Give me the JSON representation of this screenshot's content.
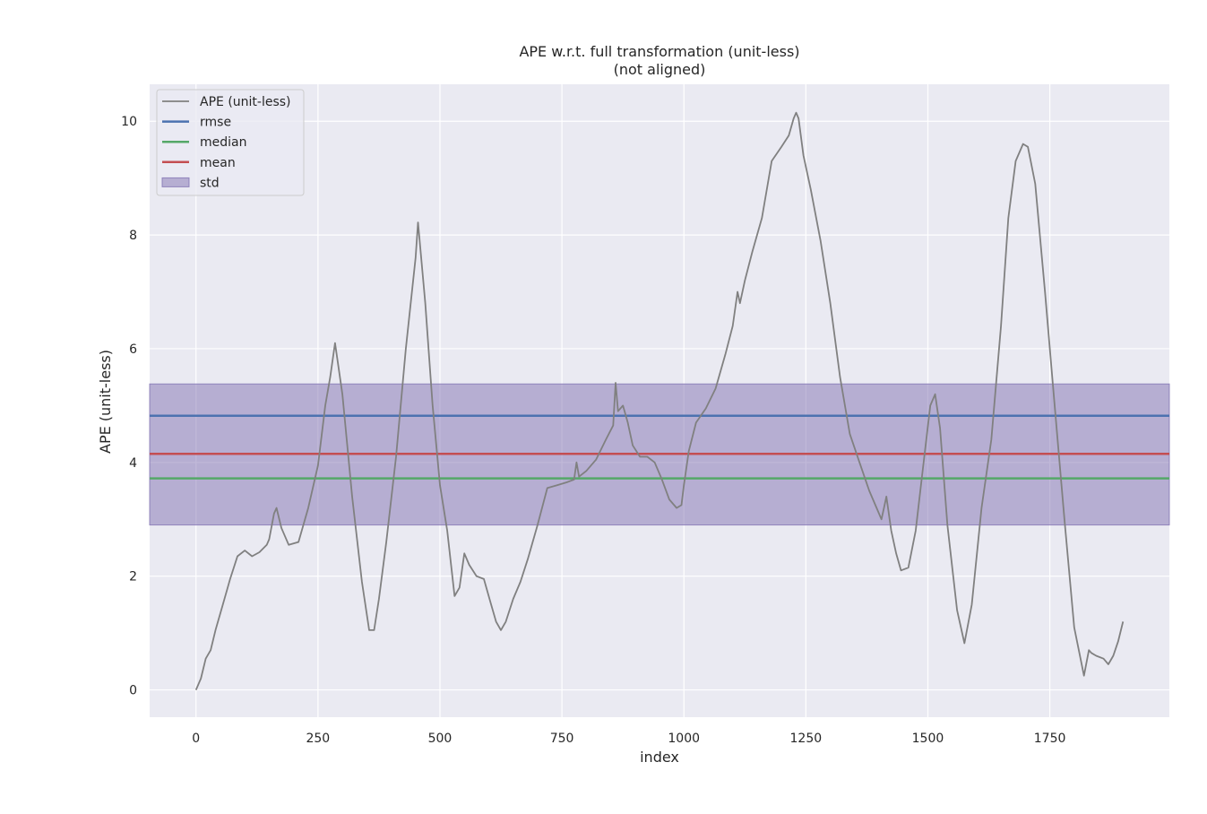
{
  "chart_data": {
    "type": "line",
    "title": "APE w.r.t. full transformation (unit-less)",
    "subtitle": "(not aligned)",
    "xlabel": "index",
    "ylabel": "APE (unit-less)",
    "xlim": [
      -95,
      1995
    ],
    "ylim": [
      -0.48,
      10.65
    ],
    "xticks": [
      0,
      250,
      500,
      750,
      1000,
      1250,
      1500,
      1750
    ],
    "yticks": [
      0,
      2,
      4,
      6,
      8,
      10
    ],
    "grid": true,
    "legend_position": "top-left",
    "stats": {
      "rmse": 4.82,
      "median": 3.72,
      "mean": 4.15,
      "std_band": [
        2.9,
        5.38
      ]
    },
    "legend": [
      {
        "label": "APE (unit-less)",
        "kind": "line",
        "color": "#808080"
      },
      {
        "label": "rmse",
        "kind": "line",
        "color": "#4c72b0"
      },
      {
        "label": "median",
        "kind": "line",
        "color": "#55a868"
      },
      {
        "label": "mean",
        "kind": "line",
        "color": "#c44e52"
      },
      {
        "label": "std",
        "kind": "patch",
        "color": "#8172b2"
      }
    ],
    "series": [
      {
        "name": "APE (unit-less)",
        "color": "#808080",
        "x": [
          0,
          10,
          20,
          30,
          40,
          55,
          70,
          85,
          100,
          115,
          130,
          145,
          150,
          160,
          165,
          175,
          190,
          210,
          230,
          250,
          265,
          275,
          285,
          300,
          320,
          340,
          355,
          365,
          375,
          390,
          410,
          430,
          450,
          455,
          470,
          485,
          500,
          515,
          530,
          540,
          550,
          560,
          575,
          590,
          605,
          615,
          625,
          635,
          650,
          665,
          680,
          700,
          720,
          740,
          760,
          775,
          780,
          785,
          800,
          820,
          840,
          855,
          860,
          865,
          875,
          885,
          895,
          910,
          925,
          940,
          955,
          970,
          985,
          995,
          1000,
          1010,
          1025,
          1045,
          1065,
          1085,
          1100,
          1110,
          1115,
          1125,
          1140,
          1160,
          1180,
          1200,
          1215,
          1225,
          1230,
          1235,
          1245,
          1260,
          1280,
          1300,
          1320,
          1340,
          1360,
          1380,
          1395,
          1405,
          1410,
          1415,
          1425,
          1435,
          1445,
          1460,
          1475,
          1490,
          1505,
          1515,
          1525,
          1540,
          1560,
          1575,
          1590,
          1610,
          1630,
          1650,
          1665,
          1680,
          1695,
          1705,
          1720,
          1740,
          1760,
          1780,
          1800,
          1820,
          1830,
          1835,
          1845,
          1860,
          1870,
          1880,
          1890,
          1900
        ],
        "values": [
          0.0,
          0.2,
          0.55,
          0.7,
          1.05,
          1.5,
          1.95,
          2.35,
          2.45,
          2.35,
          2.42,
          2.55,
          2.65,
          3.1,
          3.2,
          2.85,
          2.55,
          2.6,
          3.2,
          3.95,
          5.0,
          5.5,
          6.1,
          5.2,
          3.4,
          1.9,
          1.05,
          1.05,
          1.6,
          2.6,
          4.1,
          6.0,
          7.6,
          8.22,
          6.8,
          5.0,
          3.6,
          2.8,
          1.65,
          1.8,
          2.4,
          2.2,
          2.0,
          1.95,
          1.5,
          1.2,
          1.05,
          1.2,
          1.6,
          1.9,
          2.3,
          2.9,
          3.55,
          3.6,
          3.65,
          3.7,
          4.0,
          3.75,
          3.85,
          4.05,
          4.4,
          4.65,
          5.4,
          4.9,
          5.0,
          4.7,
          4.3,
          4.1,
          4.1,
          4.0,
          3.7,
          3.35,
          3.2,
          3.25,
          3.6,
          4.2,
          4.7,
          4.95,
          5.3,
          5.9,
          6.4,
          7.0,
          6.8,
          7.2,
          7.7,
          8.3,
          9.3,
          9.55,
          9.75,
          10.05,
          10.15,
          10.05,
          9.4,
          8.8,
          7.9,
          6.8,
          5.5,
          4.5,
          4.0,
          3.5,
          3.2,
          3.0,
          3.2,
          3.4,
          2.8,
          2.4,
          2.1,
          2.15,
          2.8,
          3.9,
          5.0,
          5.2,
          4.6,
          2.9,
          1.4,
          0.82,
          1.5,
          3.2,
          4.4,
          6.4,
          8.3,
          9.3,
          9.6,
          9.55,
          8.9,
          7.0,
          5.0,
          3.0,
          1.1,
          0.25,
          0.7,
          0.65,
          0.6,
          0.55,
          0.45,
          0.6,
          0.85,
          1.2
        ]
      }
    ]
  }
}
